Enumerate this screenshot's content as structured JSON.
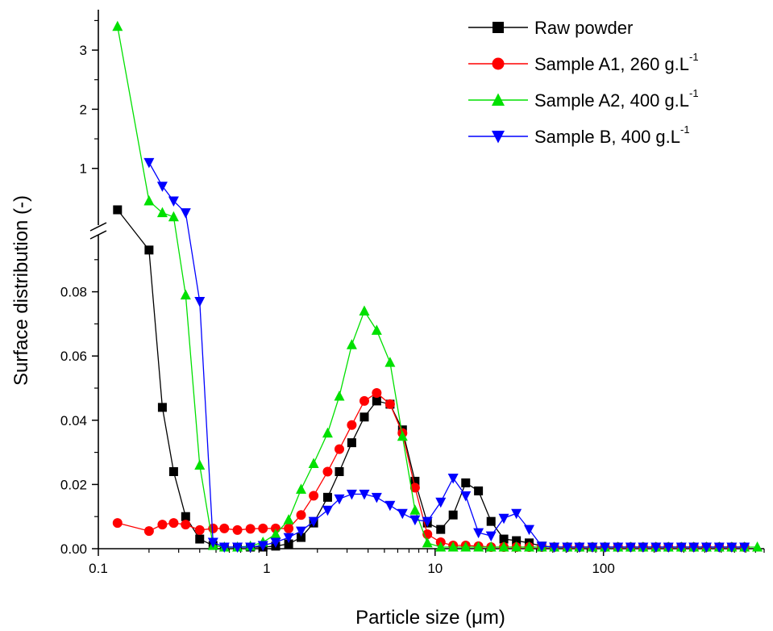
{
  "chart_data": {
    "type": "line",
    "xlabel": "Particle size (μm)",
    "ylabel": "Surface distribution (-)",
    "x_scale": "log",
    "xlim": [
      0.1,
      900
    ],
    "x_ticks": [
      0.1,
      1,
      10,
      100
    ],
    "x_tick_labels": [
      "0.1",
      "1",
      "10",
      "100"
    ],
    "y_axis_break": true,
    "ylim_lower": [
      0,
      0.1
    ],
    "y_ticks_lower": [
      0,
      0.02,
      0.04,
      0.06,
      0.08
    ],
    "y_tick_labels_lower": [
      "0.00",
      "0.02",
      "0.04",
      "0.06",
      "0.08"
    ],
    "ylim_upper": [
      0,
      3.6
    ],
    "y_ticks_upper": [
      1,
      2,
      3
    ],
    "y_tick_labels_upper": [
      "1",
      "2",
      "3"
    ],
    "grid": false,
    "legend_position": "top-right",
    "series": [
      {
        "name": "Raw powder",
        "superscript": "",
        "color": "#000000",
        "marker": "square",
        "points": [
          {
            "x": 0.13,
            "y": 0.3,
            "segment": "upper"
          },
          {
            "x": 0.2,
            "y": 0.093
          },
          {
            "x": 0.24,
            "y": 0.044
          },
          {
            "x": 0.28,
            "y": 0.024
          },
          {
            "x": 0.33,
            "y": 0.01
          },
          {
            "x": 0.4,
            "y": 0.003
          },
          {
            "x": 0.48,
            "y": 0.001
          },
          {
            "x": 0.56,
            "y": 0.0005
          },
          {
            "x": 0.67,
            "y": 0.0005
          },
          {
            "x": 0.8,
            "y": 0.0005
          },
          {
            "x": 0.95,
            "y": 0.0005
          },
          {
            "x": 1.13,
            "y": 0.0008
          },
          {
            "x": 1.35,
            "y": 0.0015
          },
          {
            "x": 1.6,
            "y": 0.0035
          },
          {
            "x": 1.9,
            "y": 0.008
          },
          {
            "x": 2.3,
            "y": 0.016
          },
          {
            "x": 2.7,
            "y": 0.024
          },
          {
            "x": 3.2,
            "y": 0.033
          },
          {
            "x": 3.8,
            "y": 0.041
          },
          {
            "x": 4.5,
            "y": 0.046
          },
          {
            "x": 5.4,
            "y": 0.045
          },
          {
            "x": 6.4,
            "y": 0.037
          },
          {
            "x": 7.6,
            "y": 0.021
          },
          {
            "x": 9.0,
            "y": 0.008
          },
          {
            "x": 10.8,
            "y": 0.006
          },
          {
            "x": 12.8,
            "y": 0.0105
          },
          {
            "x": 15.2,
            "y": 0.0205
          },
          {
            "x": 18.1,
            "y": 0.018
          },
          {
            "x": 21.5,
            "y": 0.0085
          },
          {
            "x": 25.6,
            "y": 0.003
          },
          {
            "x": 30.4,
            "y": 0.0025
          },
          {
            "x": 36.2,
            "y": 0.0018
          },
          {
            "x": 43,
            "y": 0.0008
          },
          {
            "x": 51,
            "y": 0.0005
          },
          {
            "x": 61,
            "y": 0.0005
          },
          {
            "x": 72,
            "y": 0.0005
          },
          {
            "x": 86,
            "y": 0.0005
          },
          {
            "x": 102,
            "y": 0.0005
          },
          {
            "x": 122,
            "y": 0.0005
          },
          {
            "x": 145,
            "y": 0.0005
          },
          {
            "x": 172,
            "y": 0.0005
          },
          {
            "x": 205,
            "y": 0.0005
          },
          {
            "x": 243,
            "y": 0.0005
          },
          {
            "x": 290,
            "y": 0.0005
          },
          {
            "x": 344,
            "y": 0.0005
          },
          {
            "x": 409,
            "y": 0.0005
          },
          {
            "x": 487,
            "y": 0.0005
          },
          {
            "x": 578,
            "y": 0.0005
          },
          {
            "x": 688,
            "y": 0.0005
          }
        ]
      },
      {
        "name": "Sample A1, 260 g.L",
        "superscript": "-1",
        "color": "#ff0000",
        "marker": "circle",
        "points": [
          {
            "x": 0.13,
            "y": 0.008
          },
          {
            "x": 0.2,
            "y": 0.0055
          },
          {
            "x": 0.24,
            "y": 0.0075
          },
          {
            "x": 0.28,
            "y": 0.008
          },
          {
            "x": 0.33,
            "y": 0.0075
          },
          {
            "x": 0.4,
            "y": 0.0058
          },
          {
            "x": 0.48,
            "y": 0.0063
          },
          {
            "x": 0.56,
            "y": 0.0063
          },
          {
            "x": 0.67,
            "y": 0.0058
          },
          {
            "x": 0.8,
            "y": 0.0062
          },
          {
            "x": 0.95,
            "y": 0.0063
          },
          {
            "x": 1.13,
            "y": 0.0063
          },
          {
            "x": 1.35,
            "y": 0.0063
          },
          {
            "x": 1.6,
            "y": 0.0105
          },
          {
            "x": 1.9,
            "y": 0.0165
          },
          {
            "x": 2.3,
            "y": 0.024
          },
          {
            "x": 2.7,
            "y": 0.031
          },
          {
            "x": 3.2,
            "y": 0.0385
          },
          {
            "x": 3.8,
            "y": 0.046
          },
          {
            "x": 4.5,
            "y": 0.0485
          },
          {
            "x": 5.4,
            "y": 0.045
          },
          {
            "x": 6.4,
            "y": 0.036
          },
          {
            "x": 7.6,
            "y": 0.019
          },
          {
            "x": 9.0,
            "y": 0.0045
          },
          {
            "x": 10.8,
            "y": 0.002
          },
          {
            "x": 12.8,
            "y": 0.001
          },
          {
            "x": 15.2,
            "y": 0.001
          },
          {
            "x": 18.1,
            "y": 0.0008
          },
          {
            "x": 21.5,
            "y": 0.0005
          },
          {
            "x": 25.6,
            "y": 0.0005
          },
          {
            "x": 30.4,
            "y": 0.0005
          },
          {
            "x": 36.2,
            "y": 0.0005
          },
          {
            "x": 43,
            "y": 0.0005
          },
          {
            "x": 51,
            "y": 0.0005
          },
          {
            "x": 61,
            "y": 0.0005
          },
          {
            "x": 72,
            "y": 0.0005
          },
          {
            "x": 86,
            "y": 0.0005
          },
          {
            "x": 102,
            "y": 0.0005
          },
          {
            "x": 122,
            "y": 0.0005
          },
          {
            "x": 145,
            "y": 0.0005
          },
          {
            "x": 172,
            "y": 0.0005
          },
          {
            "x": 205,
            "y": 0.0005
          },
          {
            "x": 243,
            "y": 0.0005
          },
          {
            "x": 290,
            "y": 0.0005
          },
          {
            "x": 344,
            "y": 0.0005
          },
          {
            "x": 409,
            "y": 0.0005
          },
          {
            "x": 487,
            "y": 0.0005
          },
          {
            "x": 578,
            "y": 0.0005
          },
          {
            "x": 688,
            "y": 0.0005
          }
        ]
      },
      {
        "name": "Sample A2, 400 g.L",
        "superscript": "-1",
        "color": "#00e000",
        "marker": "triangle-up",
        "points": [
          {
            "x": 0.13,
            "y": 3.4,
            "segment": "upper"
          },
          {
            "x": 0.2,
            "y": 0.45,
            "segment": "upper"
          },
          {
            "x": 0.24,
            "y": 0.25,
            "segment": "upper"
          },
          {
            "x": 0.28,
            "y": 0.18,
            "segment": "upper"
          },
          {
            "x": 0.33,
            "y": 0.079
          },
          {
            "x": 0.4,
            "y": 0.026
          },
          {
            "x": 0.48,
            "y": 0.001
          },
          {
            "x": 0.56,
            "y": 0.0005
          },
          {
            "x": 0.67,
            "y": 0.0005
          },
          {
            "x": 0.8,
            "y": 0.0008
          },
          {
            "x": 0.95,
            "y": 0.002
          },
          {
            "x": 1.13,
            "y": 0.0045
          },
          {
            "x": 1.35,
            "y": 0.009
          },
          {
            "x": 1.6,
            "y": 0.0185
          },
          {
            "x": 1.9,
            "y": 0.0265
          },
          {
            "x": 2.3,
            "y": 0.036
          },
          {
            "x": 2.7,
            "y": 0.0475
          },
          {
            "x": 3.2,
            "y": 0.0635
          },
          {
            "x": 3.8,
            "y": 0.074
          },
          {
            "x": 4.5,
            "y": 0.068
          },
          {
            "x": 5.4,
            "y": 0.058
          },
          {
            "x": 6.4,
            "y": 0.035
          },
          {
            "x": 7.6,
            "y": 0.012
          },
          {
            "x": 9.0,
            "y": 0.0018
          },
          {
            "x": 10.8,
            "y": 0.0005
          },
          {
            "x": 12.8,
            "y": 0.0005
          },
          {
            "x": 15.2,
            "y": 0.0005
          },
          {
            "x": 18.1,
            "y": 0.0005
          },
          {
            "x": 21.5,
            "y": 0.0005
          },
          {
            "x": 25.6,
            "y": 0.0005
          },
          {
            "x": 30.4,
            "y": 0.0005
          },
          {
            "x": 36.2,
            "y": 0.0005
          },
          {
            "x": 43,
            "y": 0.0005
          },
          {
            "x": 51,
            "y": 0.0005
          },
          {
            "x": 61,
            "y": 0.0005
          },
          {
            "x": 72,
            "y": 0.0005
          },
          {
            "x": 86,
            "y": 0.0005
          },
          {
            "x": 102,
            "y": 0.0005
          },
          {
            "x": 122,
            "y": 0.0005
          },
          {
            "x": 145,
            "y": 0.0005
          },
          {
            "x": 172,
            "y": 0.0005
          },
          {
            "x": 205,
            "y": 0.0005
          },
          {
            "x": 243,
            "y": 0.0005
          },
          {
            "x": 290,
            "y": 0.0005
          },
          {
            "x": 344,
            "y": 0.0005
          },
          {
            "x": 409,
            "y": 0.0005
          },
          {
            "x": 487,
            "y": 0.0005
          },
          {
            "x": 578,
            "y": 0.0005
          },
          {
            "x": 688,
            "y": 0.0005
          },
          {
            "x": 820,
            "y": 0.0005
          }
        ]
      },
      {
        "name": "Sample B, 400 g.L",
        "superscript": "-1",
        "color": "#0000ff",
        "marker": "triangle-down",
        "points": [
          {
            "x": 0.2,
            "y": 1.1,
            "segment": "upper"
          },
          {
            "x": 0.24,
            "y": 0.7,
            "segment": "upper"
          },
          {
            "x": 0.28,
            "y": 0.45,
            "segment": "upper"
          },
          {
            "x": 0.33,
            "y": 0.25,
            "segment": "upper"
          },
          {
            "x": 0.4,
            "y": 0.077
          },
          {
            "x": 0.48,
            "y": 0.002
          },
          {
            "x": 0.56,
            "y": 0.0005
          },
          {
            "x": 0.67,
            "y": 0.0005
          },
          {
            "x": 0.8,
            "y": 0.0005
          },
          {
            "x": 0.95,
            "y": 0.001
          },
          {
            "x": 1.13,
            "y": 0.002
          },
          {
            "x": 1.35,
            "y": 0.0035
          },
          {
            "x": 1.6,
            "y": 0.0055
          },
          {
            "x": 1.9,
            "y": 0.0085
          },
          {
            "x": 2.3,
            "y": 0.012
          },
          {
            "x": 2.7,
            "y": 0.0155
          },
          {
            "x": 3.2,
            "y": 0.017
          },
          {
            "x": 3.8,
            "y": 0.017
          },
          {
            "x": 4.5,
            "y": 0.016
          },
          {
            "x": 5.4,
            "y": 0.0135
          },
          {
            "x": 6.4,
            "y": 0.011
          },
          {
            "x": 7.6,
            "y": 0.009
          },
          {
            "x": 9.0,
            "y": 0.0085
          },
          {
            "x": 10.8,
            "y": 0.0145
          },
          {
            "x": 12.8,
            "y": 0.022
          },
          {
            "x": 15.2,
            "y": 0.0165
          },
          {
            "x": 18.1,
            "y": 0.005
          },
          {
            "x": 21.5,
            "y": 0.004
          },
          {
            "x": 25.6,
            "y": 0.0095
          },
          {
            "x": 30.4,
            "y": 0.011
          },
          {
            "x": 36.2,
            "y": 0.006
          },
          {
            "x": 43,
            "y": 0.0008
          },
          {
            "x": 51,
            "y": 0.0005
          },
          {
            "x": 61,
            "y": 0.0005
          },
          {
            "x": 72,
            "y": 0.0005
          },
          {
            "x": 86,
            "y": 0.0005
          },
          {
            "x": 102,
            "y": 0.0005
          },
          {
            "x": 122,
            "y": 0.0005
          },
          {
            "x": 145,
            "y": 0.0005
          },
          {
            "x": 172,
            "y": 0.0005
          },
          {
            "x": 205,
            "y": 0.0005
          },
          {
            "x": 243,
            "y": 0.0005
          },
          {
            "x": 290,
            "y": 0.0005
          },
          {
            "x": 344,
            "y": 0.0005
          },
          {
            "x": 409,
            "y": 0.0005
          },
          {
            "x": 487,
            "y": 0.0005
          },
          {
            "x": 578,
            "y": 0.0005
          },
          {
            "x": 688,
            "y": 0.0005
          }
        ]
      }
    ]
  }
}
